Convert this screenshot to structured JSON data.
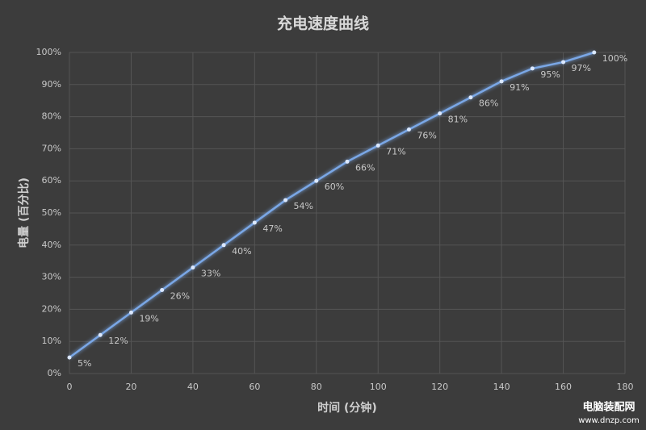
{
  "chart_data": {
    "type": "line",
    "title": "充电速度曲线",
    "x_label": "时间 (分钟)",
    "y_label": "电量 (百分比)",
    "x": [
      0,
      10,
      20,
      30,
      40,
      50,
      60,
      70,
      80,
      90,
      100,
      110,
      120,
      130,
      140,
      150,
      160,
      170
    ],
    "series": [
      {
        "name": "电量",
        "color": "#7aa7e6",
        "values": [
          5,
          12,
          19,
          26,
          33,
          40,
          47,
          54,
          60,
          66,
          71,
          76,
          81,
          86,
          91,
          95,
          97,
          100
        ],
        "value_labels": [
          "5%",
          "12%",
          "19%",
          "26%",
          "33%",
          "40%",
          "47%",
          "54%",
          "60%",
          "66%",
          "71%",
          "76%",
          "81%",
          "86%",
          "91%",
          "95%",
          "97%",
          "100%"
        ]
      }
    ],
    "xlim": [
      0,
      180
    ],
    "xticks": [
      0,
      20,
      40,
      60,
      80,
      100,
      120,
      140,
      160,
      180
    ],
    "ylim": [
      0,
      100
    ],
    "yticks": [
      {
        "value": 0,
        "label": "0%"
      },
      {
        "value": 10,
        "label": "10%"
      },
      {
        "value": 20,
        "label": "20%"
      },
      {
        "value": 30,
        "label": "30%"
      },
      {
        "value": 40,
        "label": "40%"
      },
      {
        "value": 50,
        "label": "50%"
      },
      {
        "value": 60,
        "label": "60%"
      },
      {
        "value": 70,
        "label": "70%"
      },
      {
        "value": 80,
        "label": "80%"
      },
      {
        "value": 90,
        "label": "90%"
      },
      {
        "value": 100,
        "label": "100%"
      }
    ],
    "grid": true
  },
  "watermark": {
    "name": "电脑装配网",
    "url": "www.dnzp.com"
  }
}
